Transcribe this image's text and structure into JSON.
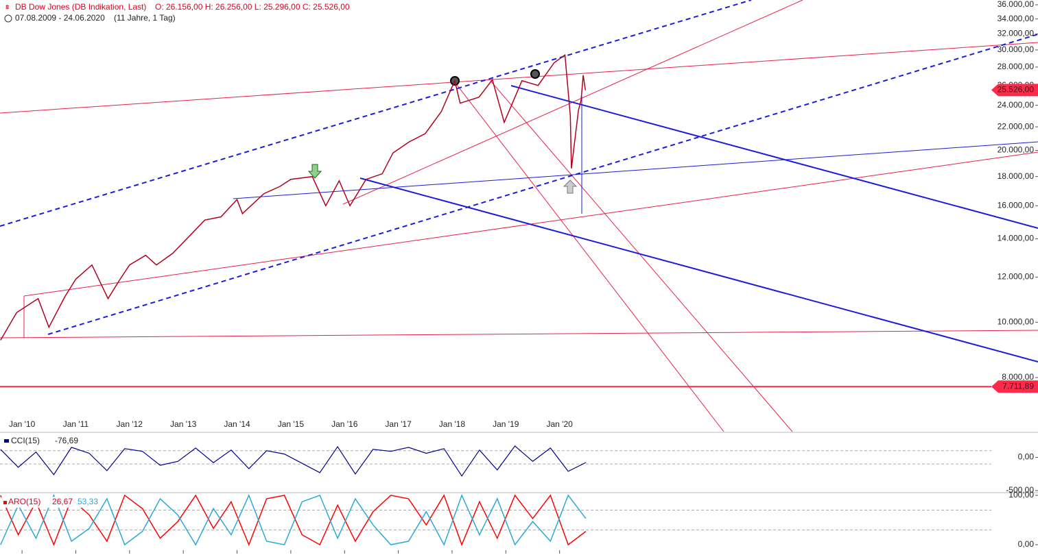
{
  "chart_data": [
    {
      "type": "line",
      "title": "DB Dow Jones (DB Indikation, Last)",
      "ohlc_text": "O: 26.156,00  H: 26.256,00  L: 25.296,00  C: 25.526,00",
      "date_range": "07.08.2009 - 24.06.2020",
      "period": "(11 Jahre, 1 Tag)",
      "log_scale": true,
      "color": "#b0001e",
      "x": [
        2009.6,
        2009.9,
        2010.3,
        2010.5,
        2010.8,
        2011.0,
        2011.3,
        2011.6,
        2011.8,
        2012.0,
        2012.3,
        2012.5,
        2012.8,
        2013.0,
        2013.4,
        2013.7,
        2014.0,
        2014.1,
        2014.5,
        2014.8,
        2015.0,
        2015.4,
        2015.65,
        2015.9,
        2016.1,
        2016.4,
        2016.7,
        2016.9,
        2017.2,
        2017.5,
        2017.8,
        2018.05,
        2018.15,
        2018.5,
        2018.75,
        2018.97,
        2019.3,
        2019.6,
        2019.9,
        2020.1,
        2020.2,
        2020.22,
        2020.35,
        2020.4,
        2020.44,
        2020.48
      ],
      "values": [
        9300,
        10400,
        11000,
        9800,
        11100,
        11900,
        12600,
        11000,
        11800,
        12600,
        13100,
        12600,
        13200,
        13800,
        15100,
        15300,
        16400,
        15500,
        16800,
        17300,
        17800,
        18000,
        16000,
        17700,
        16000,
        17800,
        18200,
        19800,
        20700,
        21400,
        23400,
        26500,
        24200,
        24800,
        26600,
        22400,
        26500,
        26000,
        28500,
        29400,
        23000,
        18600,
        23500,
        24500,
        27100,
        25500
      ],
      "xlim": [
        2009.59,
        2028.9
      ],
      "xticks": [
        {
          "value": 2010,
          "label": "Jan '10"
        },
        {
          "value": 2011,
          "label": "Jan '11"
        },
        {
          "value": 2012,
          "label": "Jan '12"
        },
        {
          "value": 2013,
          "label": "Jan '13"
        },
        {
          "value": 2014,
          "label": "Jan '14"
        },
        {
          "value": 2015,
          "label": "Jan '15"
        },
        {
          "value": 2016,
          "label": "Jan '16"
        },
        {
          "value": 2017,
          "label": "Jan '17"
        },
        {
          "value": 2018,
          "label": "Jan '18"
        },
        {
          "value": 2019,
          "label": "Jan '19"
        },
        {
          "value": 2020,
          "label": "Jan '20"
        }
      ],
      "ylim": [
        6430,
        36700
      ],
      "yticks": [
        {
          "value": 8000,
          "label": "8.000,00"
        },
        {
          "value": 10000,
          "label": "10.000,00"
        },
        {
          "value": 12000,
          "label": "12.000,00"
        },
        {
          "value": 14000,
          "label": "14.000,00"
        },
        {
          "value": 16000,
          "label": "16.000,00"
        },
        {
          "value": 18000,
          "label": "18.000,00"
        },
        {
          "value": 20000,
          "label": "20.000,00"
        },
        {
          "value": 22000,
          "label": "22.000,00"
        },
        {
          "value": 24000,
          "label": "24.000,00"
        },
        {
          "value": 26000,
          "label": "26.000,00"
        },
        {
          "value": 28000,
          "label": "28.000,00"
        },
        {
          "value": 30000,
          "label": "30.000,00"
        },
        {
          "value": 32000,
          "label": "32.000,00"
        },
        {
          "value": 34000,
          "label": "34.000,00"
        },
        {
          "value": 36000,
          "label": "36.000,00"
        }
      ],
      "price_markers": [
        {
          "value": 25526,
          "label": "25.526,00",
          "color": "#ff2a4a",
          "line": false
        },
        {
          "value": 7711.89,
          "label": "7.711,89",
          "color": "#ff2a4a",
          "line": true
        }
      ]
    },
    {
      "type": "line",
      "title": "CCI(15)",
      "readout": {
        "value": -76.69,
        "label": "-76,69"
      },
      "color": "#00008b",
      "x": [
        2009.6,
        2009.93,
        2010.26,
        2010.59,
        2010.92,
        2011.25,
        2011.58,
        2011.91,
        2012.24,
        2012.57,
        2012.9,
        2013.23,
        2013.56,
        2013.89,
        2014.22,
        2014.55,
        2014.88,
        2015.21,
        2015.54,
        2015.87,
        2016.2,
        2016.53,
        2016.86,
        2017.19,
        2017.52,
        2017.85,
        2018.18,
        2018.51,
        2018.84,
        2019.17,
        2019.5,
        2019.83,
        2020.16,
        2020.49
      ],
      "values": [
        120,
        -150,
        80,
        -260,
        150,
        60,
        -200,
        130,
        90,
        -120,
        -60,
        140,
        -80,
        110,
        -170,
        100,
        50,
        -90,
        -230,
        160,
        -250,
        120,
        90,
        150,
        60,
        130,
        -280,
        110,
        -190,
        170,
        -60,
        140,
        -210,
        -77
      ],
      "xlim": [
        2009.59,
        2028.9
      ],
      "ylim": [
        -520,
        365
      ],
      "yticks": [
        {
          "value": 0,
          "label": "0,00"
        },
        {
          "value": -500,
          "label": "-500,00"
        }
      ],
      "dashed_levels": [
        100,
        -100
      ]
    },
    {
      "type": "line",
      "title": "ARO(15)",
      "x": [
        2009.6,
        2009.93,
        2010.26,
        2010.59,
        2010.92,
        2011.25,
        2011.58,
        2011.91,
        2012.24,
        2012.57,
        2012.9,
        2013.23,
        2013.56,
        2013.89,
        2014.22,
        2014.55,
        2014.88,
        2015.21,
        2015.54,
        2015.87,
        2016.2,
        2016.53,
        2016.86,
        2017.19,
        2017.52,
        2017.85,
        2018.18,
        2018.51,
        2018.84,
        2019.17,
        2019.5,
        2019.83,
        2020.16,
        2020.49
      ],
      "series": [
        {
          "color": "#ff0000",
          "readout": {
            "value": 26.67,
            "label": "26,67"
          },
          "values": [
            100,
            20,
            87,
            0,
            93,
            60,
            7,
            100,
            73,
            13,
            47,
            100,
            33,
            87,
            0,
            93,
            100,
            20,
            0,
            80,
            7,
            67,
            100,
            93,
            40,
            100,
            0,
            87,
            13,
            100,
            53,
            100,
            0,
            27
          ]
        },
        {
          "color": "#2aa8d8",
          "readout": {
            "value": 53.33,
            "label": "53,33"
          },
          "values": [
            0,
            80,
            13,
            100,
            7,
            33,
            93,
            0,
            27,
            93,
            60,
            0,
            73,
            20,
            100,
            7,
            0,
            87,
            100,
            13,
            93,
            40,
            0,
            7,
            67,
            0,
            100,
            20,
            93,
            0,
            47,
            7,
            100,
            53
          ]
        }
      ],
      "xlim": [
        2009.59,
        2028.9
      ],
      "ylim": [
        -7,
        104
      ],
      "yticks": [
        {
          "value": 100,
          "label": "100,00"
        },
        {
          "value": 0,
          "label": "0,00"
        }
      ],
      "dashed_levels": [
        70,
        30
      ]
    }
  ]
}
